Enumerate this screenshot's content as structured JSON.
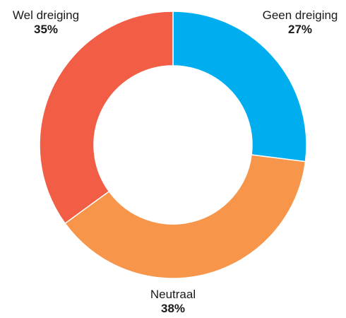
{
  "chart_data": {
    "type": "pie",
    "variant": "donut",
    "categories": [
      "Geen dreiging",
      "Neutraal",
      "Wel dreiging"
    ],
    "values": [
      27,
      38,
      35
    ],
    "value_labels": [
      "27%",
      "38%",
      "35%"
    ],
    "colors": [
      "#00AEEF",
      "#F7964A",
      "#F15D45"
    ],
    "legend": "none",
    "start_angle": "12 o'clock",
    "direction": "clockwise"
  }
}
